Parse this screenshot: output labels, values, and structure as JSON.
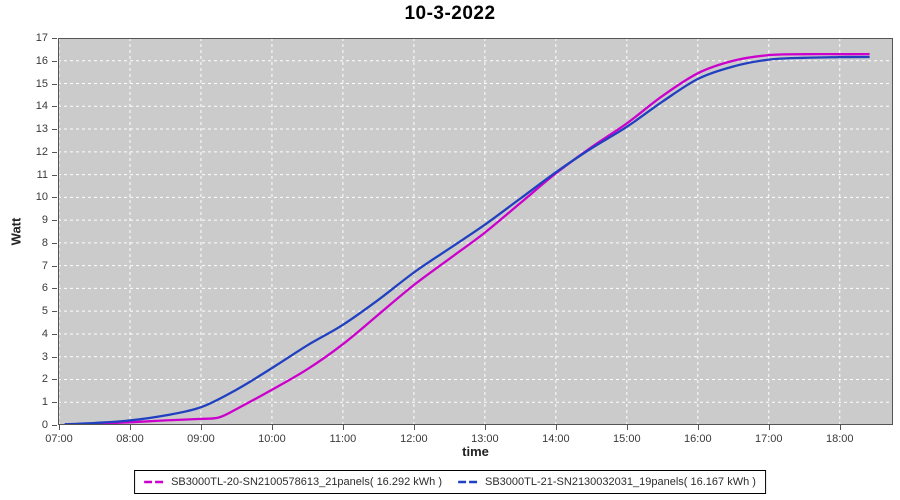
{
  "title": "10-3-2022",
  "colors": {
    "plot_background": "#cbcbcb",
    "grid_line": "#ffffff",
    "plot_border": "#555555",
    "series1": "#cc00cc",
    "series2": "#2040c0",
    "tick_text": "#3a3a3a"
  },
  "chart_data": {
    "type": "line",
    "title": "10-3-2022",
    "xlabel": "time",
    "ylabel": "Watt",
    "xlim": [
      6.986,
      18.75
    ],
    "ylim": [
      0,
      17
    ],
    "grid": true,
    "legend_position": "bottom",
    "x_tick_hours": [
      7,
      8,
      9,
      10,
      11,
      12,
      13,
      14,
      15,
      16,
      17,
      18
    ],
    "x_tick_labels": [
      "07:00",
      "08:00",
      "09:00",
      "10:00",
      "11:00",
      "12:00",
      "13:00",
      "14:00",
      "15:00",
      "16:00",
      "17:00",
      "18:00"
    ],
    "y_ticks": [
      0,
      1,
      2,
      3,
      4,
      5,
      6,
      7,
      8,
      9,
      10,
      11,
      12,
      13,
      14,
      15,
      16,
      17
    ],
    "series": [
      {
        "name": "SB3000TL-20-SN2100578613_21panels( 16.292 kWh )",
        "color": "#cc00cc",
        "total_kwh": 16.292,
        "x": [
          7.08,
          7.5,
          8.0,
          8.5,
          9.0,
          9.25,
          9.5,
          10.0,
          10.5,
          11.0,
          11.5,
          12.0,
          12.5,
          13.0,
          13.5,
          14.0,
          14.5,
          15.0,
          15.5,
          16.0,
          16.5,
          17.0,
          17.5,
          18.0,
          18.42
        ],
        "y": [
          0.03,
          0.06,
          0.12,
          0.2,
          0.27,
          0.33,
          0.7,
          1.55,
          2.45,
          3.55,
          4.85,
          6.15,
          7.3,
          8.45,
          9.75,
          11.05,
          12.2,
          13.25,
          14.45,
          15.45,
          16.0,
          16.25,
          16.29,
          16.29,
          16.292
        ]
      },
      {
        "name": "SB3000TL-21-SN2130032031_19panels( 16.167 kWh )",
        "color": "#2040c0",
        "total_kwh": 16.167,
        "x": [
          7.08,
          7.5,
          8.0,
          8.5,
          9.0,
          9.5,
          10.0,
          10.5,
          11.0,
          11.5,
          12.0,
          12.5,
          13.0,
          13.5,
          14.0,
          14.5,
          15.0,
          15.5,
          16.0,
          16.5,
          17.0,
          17.5,
          18.0,
          18.42
        ],
        "y": [
          0.03,
          0.09,
          0.2,
          0.42,
          0.78,
          1.55,
          2.5,
          3.5,
          4.4,
          5.5,
          6.7,
          7.75,
          8.8,
          9.95,
          11.1,
          12.15,
          13.1,
          14.2,
          15.2,
          15.75,
          16.05,
          16.13,
          16.16,
          16.167
        ]
      }
    ]
  }
}
